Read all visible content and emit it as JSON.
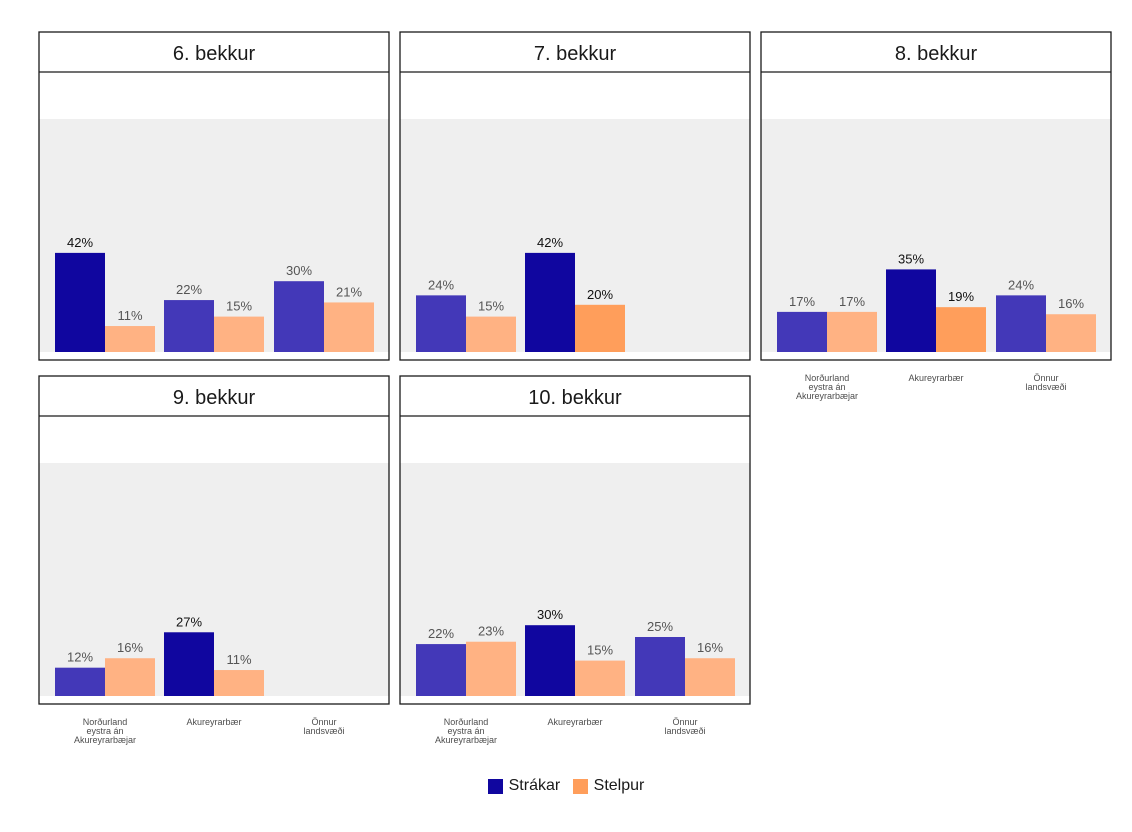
{
  "chart_data": {
    "type": "bar",
    "categories": [
      "Norðurland eystra án Akureyrarbæjar",
      "Akureyrarbær",
      "Önnur landsvæði"
    ],
    "ylim": [
      0,
      100
    ],
    "grid": false,
    "legend_position": "bottom",
    "legend": [
      {
        "name": "Strákar",
        "color": "#10069f"
      },
      {
        "name": "Stelpur",
        "color": "#ff9e5b"
      }
    ],
    "panels": [
      {
        "title": "6. bekkur",
        "series": [
          {
            "name": "Strákar",
            "values": [
              42,
              22,
              30
            ],
            "labels": [
              "42%",
              "22%",
              "30%"
            ]
          },
          {
            "name": "Stelpur",
            "values": [
              11,
              15,
              21
            ],
            "labels": [
              "11%",
              "15%",
              "21%"
            ]
          }
        ]
      },
      {
        "title": "7. bekkur",
        "series": [
          {
            "name": "Strákar",
            "values": [
              24,
              42,
              null
            ],
            "labels": [
              "24%",
              "42%",
              ""
            ]
          },
          {
            "name": "Stelpur",
            "values": [
              15,
              20,
              null
            ],
            "labels": [
              "15%",
              "20%",
              ""
            ]
          }
        ]
      },
      {
        "title": "8. bekkur",
        "series": [
          {
            "name": "Strákar",
            "values": [
              17,
              35,
              24
            ],
            "labels": [
              "17%",
              "35%",
              "24%"
            ]
          },
          {
            "name": "Stelpur",
            "values": [
              17,
              19,
              16
            ],
            "labels": [
              "17%",
              "19%",
              "16%"
            ]
          }
        ]
      },
      {
        "title": "9. bekkur",
        "series": [
          {
            "name": "Strákar",
            "values": [
              12,
              27,
              null
            ],
            "labels": [
              "12%",
              "27%",
              ""
            ]
          },
          {
            "name": "Stelpur",
            "values": [
              16,
              11,
              null
            ],
            "labels": [
              "16%",
              "11%",
              ""
            ]
          }
        ]
      },
      {
        "title": "10. bekkur",
        "series": [
          {
            "name": "Strákar",
            "values": [
              22,
              30,
              25
            ],
            "labels": [
              "22%",
              "30%",
              "25%"
            ]
          },
          {
            "name": "Stelpur",
            "values": [
              23,
              15,
              16
            ],
            "labels": [
              "23%",
              "15%",
              "16%"
            ]
          }
        ]
      }
    ],
    "colors": {
      "strakar_highlight": "#10069f",
      "strakar_muted": "#4338b8",
      "stelpur_highlight": "#ff9e5b",
      "stelpur_muted": "#ffb283",
      "panel_background": "#efefef"
    }
  },
  "legend_labels": {
    "strakar": "Strákar",
    "stelpur": "Stelpur"
  }
}
